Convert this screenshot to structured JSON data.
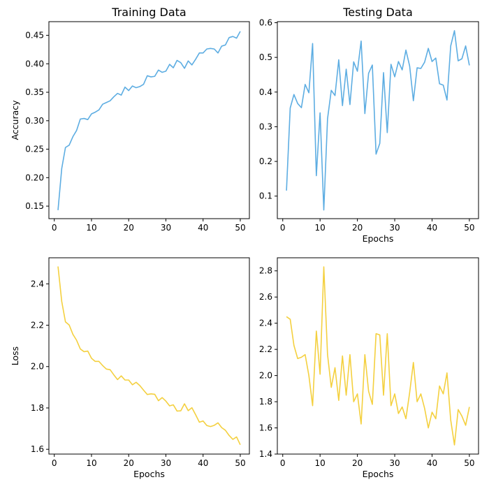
{
  "chart_data": [
    {
      "type": "line",
      "title": "Training Data",
      "xlabel": "",
      "ylabel": "Accuracy",
      "color": "#5DADE2",
      "xlim": [
        -1.45,
        52.45
      ],
      "ylim": [
        0.128,
        0.474
      ],
      "xticks": [
        0,
        10,
        20,
        30,
        40,
        50
      ],
      "yticks": [
        0.15,
        0.2,
        0.25,
        0.3,
        0.35,
        0.4,
        0.45
      ],
      "ytick_labels": [
        "0.15",
        "0.20",
        "0.25",
        "0.30",
        "0.35",
        "0.40",
        "0.45"
      ],
      "grid": false,
      "x": [
        1,
        2,
        3,
        4,
        5,
        6,
        7,
        8,
        9,
        10,
        11,
        12,
        13,
        14,
        15,
        16,
        17,
        18,
        19,
        20,
        21,
        22,
        23,
        24,
        25,
        26,
        27,
        28,
        29,
        30,
        31,
        32,
        33,
        34,
        35,
        36,
        37,
        38,
        39,
        40,
        41,
        42,
        43,
        44,
        45,
        46,
        47,
        48,
        49,
        50
      ],
      "y": [
        0.143,
        0.216,
        0.253,
        0.257,
        0.272,
        0.283,
        0.303,
        0.304,
        0.302,
        0.312,
        0.315,
        0.319,
        0.329,
        0.332,
        0.335,
        0.342,
        0.348,
        0.345,
        0.359,
        0.353,
        0.361,
        0.358,
        0.36,
        0.364,
        0.379,
        0.377,
        0.378,
        0.389,
        0.385,
        0.387,
        0.399,
        0.393,
        0.406,
        0.402,
        0.392,
        0.405,
        0.398,
        0.408,
        0.419,
        0.419,
        0.426,
        0.427,
        0.426,
        0.419,
        0.431,
        0.433,
        0.446,
        0.448,
        0.445,
        0.457
      ]
    },
    {
      "type": "line",
      "title": "Testing Data",
      "xlabel": "Epochs",
      "ylabel": "",
      "color": "#5DADE2",
      "xlim": [
        -1.45,
        52.45
      ],
      "ylim": [
        0.035,
        0.603
      ],
      "xticks": [
        0,
        10,
        20,
        30,
        40,
        50
      ],
      "yticks": [
        0.1,
        0.2,
        0.3,
        0.4,
        0.5,
        0.6
      ],
      "ytick_labels": [
        "0.1",
        "0.2",
        "0.3",
        "0.4",
        "0.5",
        "0.6"
      ],
      "grid": false,
      "x": [
        1,
        2,
        3,
        4,
        5,
        6,
        7,
        8,
        9,
        10,
        11,
        12,
        13,
        14,
        15,
        16,
        17,
        18,
        19,
        20,
        21,
        22,
        23,
        24,
        25,
        26,
        27,
        28,
        29,
        30,
        31,
        32,
        33,
        34,
        35,
        36,
        37,
        38,
        39,
        40,
        41,
        42,
        43,
        44,
        45,
        46,
        47,
        48,
        49,
        50
      ],
      "y": [
        0.116,
        0.354,
        0.393,
        0.367,
        0.355,
        0.422,
        0.398,
        0.54,
        0.159,
        0.34,
        0.06,
        0.323,
        0.405,
        0.39,
        0.493,
        0.361,
        0.466,
        0.364,
        0.487,
        0.46,
        0.547,
        0.338,
        0.454,
        0.478,
        0.221,
        0.252,
        0.456,
        0.283,
        0.48,
        0.444,
        0.488,
        0.464,
        0.521,
        0.475,
        0.375,
        0.47,
        0.468,
        0.486,
        0.526,
        0.488,
        0.498,
        0.424,
        0.42,
        0.377,
        0.533,
        0.577,
        0.49,
        0.496,
        0.533,
        0.477
      ]
    },
    {
      "type": "line",
      "title": "",
      "xlabel": "Epochs",
      "ylabel": "Loss",
      "color": "#F4D03F",
      "xlim": [
        -1.45,
        52.45
      ],
      "ylim": [
        1.577,
        2.526
      ],
      "xticks": [
        0,
        10,
        20,
        30,
        40,
        50
      ],
      "yticks": [
        1.6,
        1.8,
        2.0,
        2.2,
        2.4
      ],
      "ytick_labels": [
        "1.6",
        "1.8",
        "2.0",
        "2.2",
        "2.4"
      ],
      "grid": false,
      "x": [
        1,
        2,
        3,
        4,
        5,
        6,
        7,
        8,
        9,
        10,
        11,
        12,
        13,
        14,
        15,
        16,
        17,
        18,
        19,
        20,
        21,
        22,
        23,
        24,
        25,
        26,
        27,
        28,
        29,
        30,
        31,
        32,
        33,
        34,
        35,
        36,
        37,
        38,
        39,
        40,
        41,
        42,
        43,
        44,
        45,
        46,
        47,
        48,
        49,
        50
      ],
      "y": [
        2.484,
        2.315,
        2.216,
        2.201,
        2.156,
        2.127,
        2.085,
        2.072,
        2.075,
        2.04,
        2.025,
        2.025,
        2.005,
        1.988,
        1.985,
        1.96,
        1.937,
        1.955,
        1.935,
        1.935,
        1.912,
        1.924,
        1.908,
        1.886,
        1.865,
        1.868,
        1.866,
        1.835,
        1.85,
        1.833,
        1.81,
        1.815,
        1.785,
        1.786,
        1.82,
        1.787,
        1.801,
        1.767,
        1.731,
        1.737,
        1.715,
        1.71,
        1.716,
        1.728,
        1.705,
        1.692,
        1.667,
        1.648,
        1.66,
        1.622
      ]
    },
    {
      "type": "line",
      "title": "",
      "xlabel": "Epochs",
      "ylabel": "",
      "color": "#F4D03F",
      "xlim": [
        -1.45,
        52.45
      ],
      "ylim": [
        1.4,
        2.9
      ],
      "xticks": [
        0,
        10,
        20,
        30,
        40,
        50
      ],
      "yticks": [
        1.4,
        1.6,
        1.8,
        2.0,
        2.2,
        2.4,
        2.6,
        2.8
      ],
      "ytick_labels": [
        "1.4",
        "1.6",
        "1.8",
        "2.0",
        "2.2",
        "2.4",
        "2.6",
        "2.8"
      ],
      "grid": false,
      "x": [
        1,
        2,
        3,
        4,
        5,
        6,
        7,
        8,
        9,
        10,
        11,
        12,
        13,
        14,
        15,
        16,
        17,
        18,
        19,
        20,
        21,
        22,
        23,
        24,
        25,
        26,
        27,
        28,
        29,
        30,
        31,
        32,
        33,
        34,
        35,
        36,
        37,
        38,
        39,
        40,
        41,
        42,
        43,
        44,
        45,
        46,
        47,
        48,
        49,
        50
      ],
      "y": [
        2.45,
        2.43,
        2.23,
        2.13,
        2.14,
        2.16,
        2.0,
        1.77,
        2.34,
        2.01,
        2.83,
        2.16,
        1.91,
        2.06,
        1.81,
        2.15,
        1.85,
        2.16,
        1.8,
        1.86,
        1.63,
        2.16,
        1.88,
        1.78,
        2.32,
        2.31,
        1.85,
        2.32,
        1.77,
        1.86,
        1.71,
        1.76,
        1.67,
        1.87,
        2.1,
        1.8,
        1.86,
        1.75,
        1.6,
        1.72,
        1.67,
        1.92,
        1.86,
        2.02,
        1.66,
        1.47,
        1.74,
        1.69,
        1.62,
        1.76
      ]
    }
  ]
}
